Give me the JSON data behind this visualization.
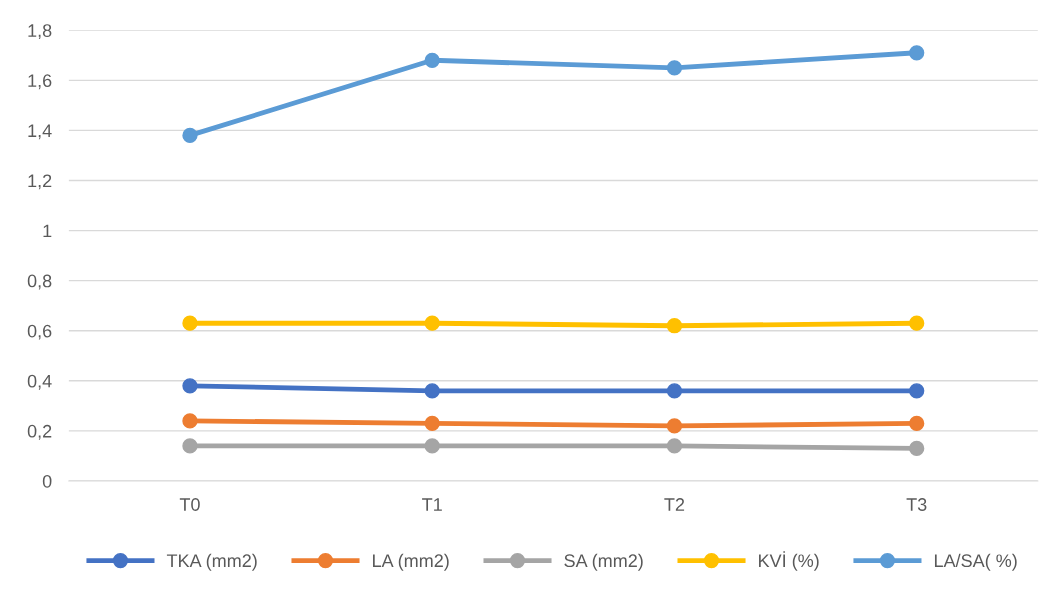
{
  "chart_data": {
    "type": "line",
    "categories": [
      "T0",
      "T1",
      "T2",
      "T3"
    ],
    "series": [
      {
        "name": "TKA (mm2)",
        "color": "#4472c4",
        "values": [
          0.38,
          0.36,
          0.36,
          0.36
        ]
      },
      {
        "name": "LA (mm2)",
        "color": "#ed7d31",
        "values": [
          0.24,
          0.23,
          0.22,
          0.23
        ]
      },
      {
        "name": "SA (mm2)",
        "color": "#a5a5a5",
        "values": [
          0.14,
          0.14,
          0.14,
          0.13
        ]
      },
      {
        "name": "KVİ (%)",
        "color": "#ffc000",
        "values": [
          0.63,
          0.63,
          0.62,
          0.63
        ]
      },
      {
        "name": "LA/SA( %)",
        "color": "#5b9bd5",
        "values": [
          1.38,
          1.68,
          1.65,
          1.71
        ]
      }
    ],
    "ylim": [
      0,
      1.8
    ],
    "yticks": [
      0,
      {
        "value": 0.2,
        "label": "0,2"
      },
      {
        "value": 0.4,
        "label": "0,4"
      },
      {
        "value": 0.6,
        "label": "0,6"
      },
      {
        "value": 0.8,
        "label": "0,8"
      },
      1,
      {
        "value": 1.2,
        "label": "1,2"
      },
      {
        "value": 1.4,
        "label": "1,4"
      },
      {
        "value": 1.6,
        "label": "1,6"
      },
      {
        "value": 1.8,
        "label": "1,8"
      }
    ],
    "grid": "y",
    "legend": "bottom",
    "marker": "circle",
    "line_style": "solid"
  }
}
